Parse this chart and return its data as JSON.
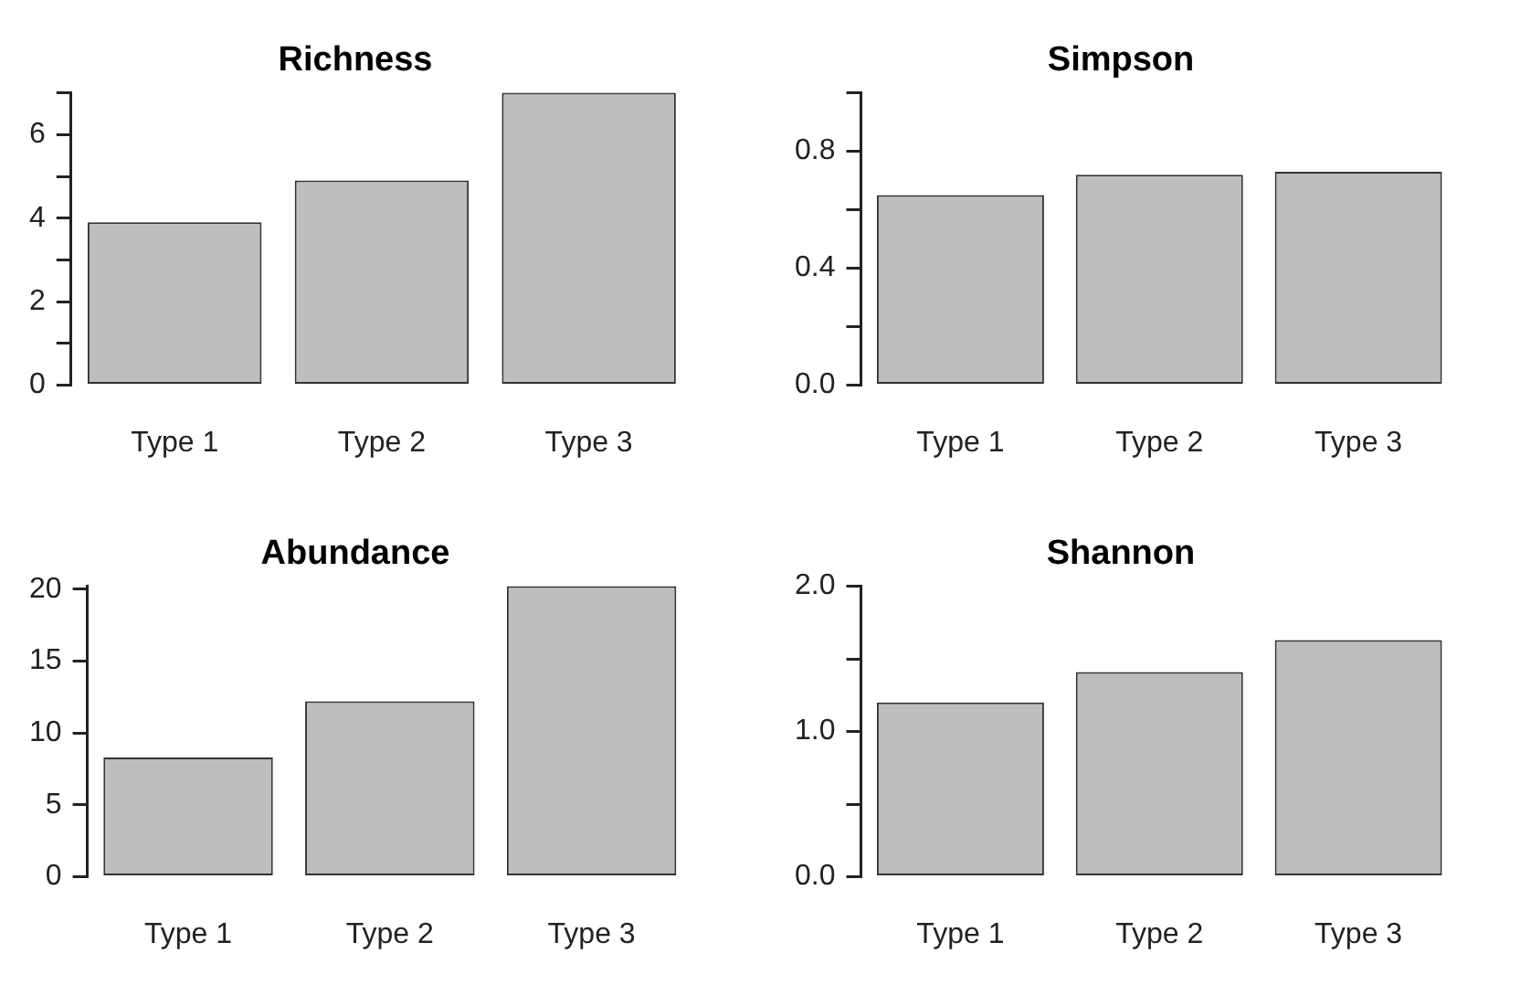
{
  "chart_data": [
    {
      "type": "bar",
      "title": "Richness",
      "categories": [
        "Type 1",
        "Type 2",
        "Type 3"
      ],
      "values": [
        3.9,
        4.9,
        7.0
      ],
      "color": "#bebebe",
      "ylim": [
        0,
        7
      ],
      "yticks": [
        0,
        {
          "value": 1,
          "label": null
        },
        2,
        {
          "value": 3,
          "label": null
        },
        4,
        {
          "value": 5,
          "label": null
        },
        6,
        {
          "value": 7,
          "label": null
        }
      ]
    },
    {
      "type": "bar",
      "title": "Simpson",
      "categories": [
        "Type 1",
        "Type 2",
        "Type 3"
      ],
      "values": [
        0.65,
        0.72,
        0.73
      ],
      "color": "#bebebe",
      "ylim": [
        0,
        1.0
      ],
      "yticks": [
        {
          "value": 0,
          "label": "0.0"
        },
        {
          "value": 0.2,
          "label": null
        },
        0.4,
        {
          "value": 0.6,
          "label": null
        },
        0.8,
        {
          "value": 1.0,
          "label": null
        }
      ]
    },
    {
      "type": "bar",
      "title": "Abundance",
      "categories": [
        "Type 1",
        "Type 2",
        "Type 3"
      ],
      "values": [
        8.3,
        12.2,
        20.2
      ],
      "color": "#bebebe",
      "ylim": [
        0,
        20.2
      ],
      "yticks": [
        0,
        5,
        10,
        15,
        20
      ]
    },
    {
      "type": "bar",
      "title": "Shannon",
      "categories": [
        "Type 1",
        "Type 2",
        "Type 3"
      ],
      "values": [
        1.2,
        1.41,
        1.63
      ],
      "color": "#bebebe",
      "ylim": [
        0,
        2.0
      ],
      "yticks": [
        {
          "value": 0,
          "label": "0.0"
        },
        {
          "value": 0.5,
          "label": null
        },
        {
          "value": 1.0,
          "label": "1.0"
        },
        {
          "value": 1.5,
          "label": null
        },
        {
          "value": 2.0,
          "label": "2.0"
        }
      ]
    }
  ]
}
